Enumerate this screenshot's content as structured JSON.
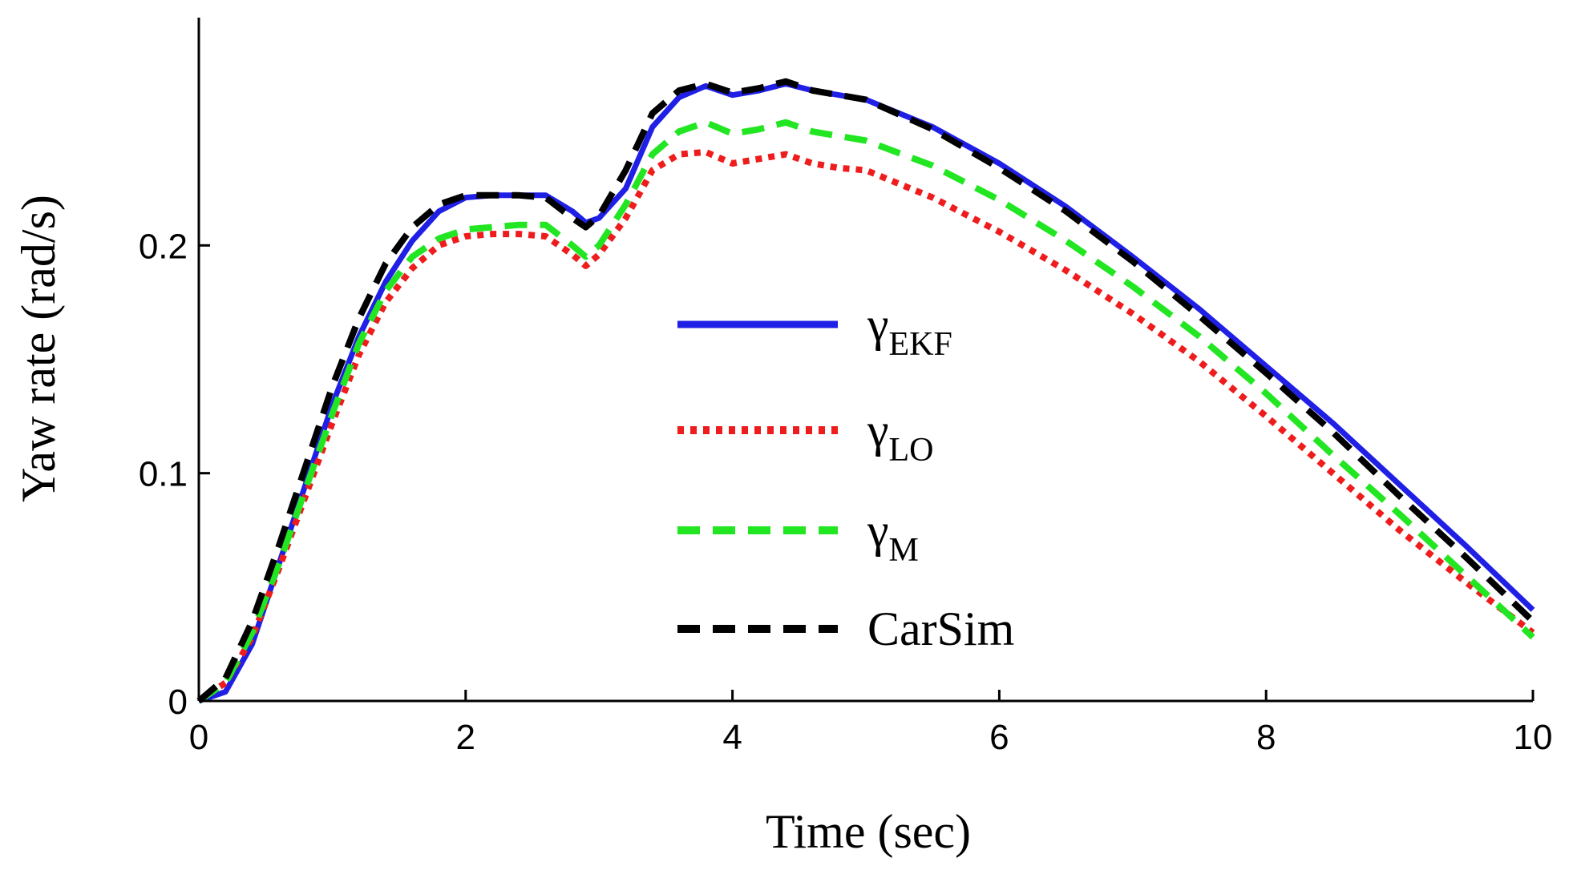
{
  "chart_data": {
    "type": "line",
    "title": "",
    "xlabel": "Time (sec)",
    "ylabel": "Yaw rate (rad/s)",
    "xlim": [
      0,
      10
    ],
    "ylim": [
      0,
      0.3
    ],
    "xticks": [
      0,
      2,
      4,
      6,
      8,
      10
    ],
    "xtick_labels": [
      "0",
      "2",
      "4",
      "6",
      "8",
      "10"
    ],
    "yticks": [
      0,
      0.1,
      0.2
    ],
    "ytick_labels": [
      "0",
      "0.1",
      "0.2"
    ],
    "grid": false,
    "legend_position": "center-right",
    "x": [
      0,
      0.2,
      0.4,
      0.6,
      0.8,
      1.0,
      1.2,
      1.4,
      1.6,
      1.8,
      2.0,
      2.2,
      2.4,
      2.6,
      2.8,
      2.9,
      3.0,
      3.2,
      3.4,
      3.6,
      3.8,
      4.0,
      4.2,
      4.4,
      4.6,
      4.8,
      5.0,
      5.5,
      6.0,
      6.5,
      7.0,
      7.5,
      8.0,
      8.5,
      9.0,
      9.5,
      10.0
    ],
    "series": [
      {
        "name": "EKF",
        "legend_symbol": "γ",
        "legend_sub": "EKF",
        "color": "#1f1fe6",
        "dash": "solid",
        "values": [
          0,
          0.004,
          0.025,
          0.06,
          0.095,
          0.13,
          0.16,
          0.184,
          0.202,
          0.215,
          0.221,
          0.222,
          0.222,
          0.222,
          0.215,
          0.21,
          0.212,
          0.225,
          0.252,
          0.265,
          0.27,
          0.266,
          0.268,
          0.271,
          0.268,
          0.266,
          0.264,
          0.252,
          0.236,
          0.217,
          0.195,
          0.172,
          0.147,
          0.122,
          0.095,
          0.068,
          0.04
        ]
      },
      {
        "name": "LO",
        "legend_symbol": "γ",
        "legend_sub": "LO",
        "color": "#ee1c1c",
        "dash": "dotted",
        "values": [
          0,
          0.008,
          0.028,
          0.058,
          0.09,
          0.122,
          0.152,
          0.175,
          0.19,
          0.2,
          0.204,
          0.205,
          0.205,
          0.204,
          0.196,
          0.191,
          0.196,
          0.212,
          0.233,
          0.24,
          0.241,
          0.236,
          0.238,
          0.24,
          0.236,
          0.234,
          0.233,
          0.221,
          0.206,
          0.189,
          0.17,
          0.149,
          0.125,
          0.1,
          0.075,
          0.052,
          0.03
        ]
      },
      {
        "name": "M",
        "legend_symbol": "γ",
        "legend_sub": "M",
        "color": "#22e622",
        "dash": "dashed",
        "values": [
          0,
          0.008,
          0.03,
          0.06,
          0.093,
          0.126,
          0.157,
          0.18,
          0.195,
          0.203,
          0.207,
          0.208,
          0.209,
          0.209,
          0.2,
          0.195,
          0.2,
          0.218,
          0.24,
          0.25,
          0.254,
          0.249,
          0.251,
          0.254,
          0.25,
          0.248,
          0.246,
          0.235,
          0.22,
          0.202,
          0.182,
          0.16,
          0.135,
          0.108,
          0.082,
          0.055,
          0.028
        ]
      },
      {
        "name": "CarSim",
        "legend_symbol": "CarSim",
        "legend_sub": "",
        "color": "#000000",
        "dash": "dashed",
        "values": [
          0,
          0.01,
          0.035,
          0.068,
          0.103,
          0.138,
          0.168,
          0.192,
          0.208,
          0.218,
          0.222,
          0.222,
          0.222,
          0.221,
          0.212,
          0.208,
          0.213,
          0.233,
          0.258,
          0.268,
          0.271,
          0.267,
          0.269,
          0.272,
          0.268,
          0.266,
          0.264,
          0.251,
          0.234,
          0.215,
          0.193,
          0.169,
          0.144,
          0.118,
          0.09,
          0.063,
          0.035
        ]
      }
    ]
  }
}
